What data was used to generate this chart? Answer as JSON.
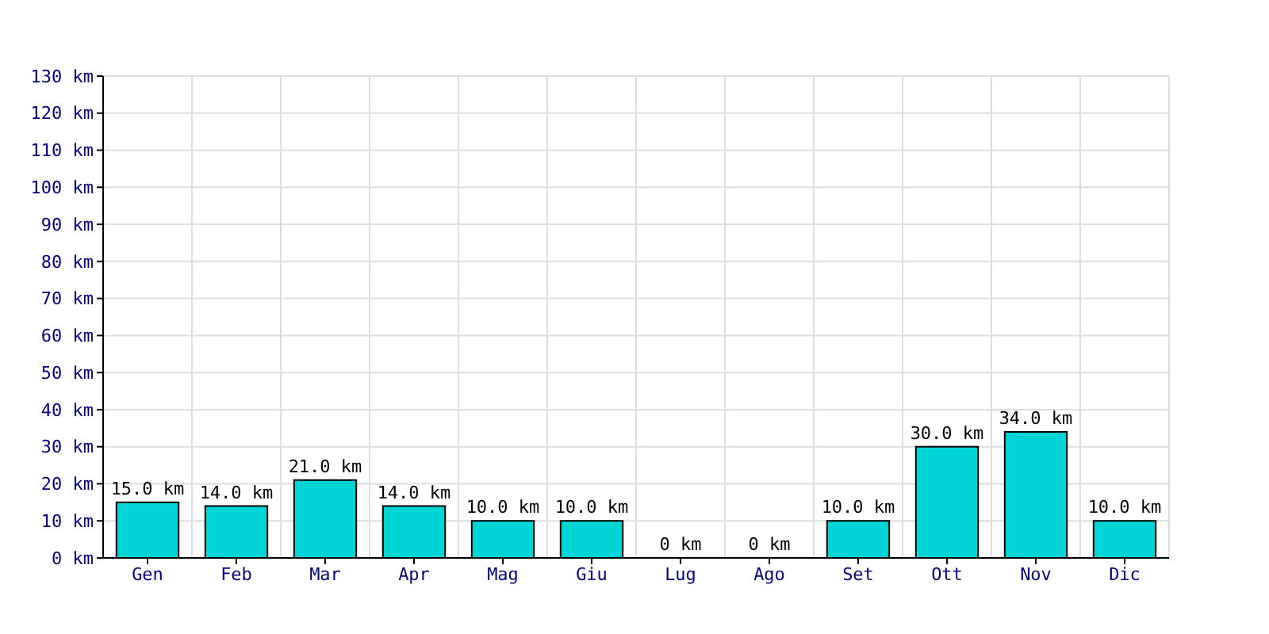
{
  "chart_data": {
    "type": "bar",
    "categories": [
      "Gen",
      "Feb",
      "Mar",
      "Apr",
      "Mag",
      "Giu",
      "Lug",
      "Ago",
      "Set",
      "Ott",
      "Nov",
      "Dic"
    ],
    "values": [
      15,
      14,
      21,
      14,
      10,
      10,
      0,
      0,
      10,
      30,
      34,
      10
    ],
    "value_labels": [
      "15.0 km",
      "14.0 km",
      "21.0 km",
      "14.0 km",
      "10.0 km",
      "10.0 km",
      "0 km",
      "0 km",
      "10.0 km",
      "30.0 km",
      "34.0 km",
      "10.0 km"
    ],
    "color": "#00d4d4",
    "ylim": [
      0,
      130
    ],
    "yticks": [
      {
        "value": 0,
        "label": "0 km"
      },
      {
        "value": 10,
        "label": "10 km"
      },
      {
        "value": 20,
        "label": "20 km"
      },
      {
        "value": 30,
        "label": "30 km"
      },
      {
        "value": 40,
        "label": "40 km"
      },
      {
        "value": 50,
        "label": "50 km"
      },
      {
        "value": 60,
        "label": "60 km"
      },
      {
        "value": 70,
        "label": "70 km"
      },
      {
        "value": 80,
        "label": "80 km"
      },
      {
        "value": 90,
        "label": "90 km"
      },
      {
        "value": 100,
        "label": "100 km"
      },
      {
        "value": 110,
        "label": "110 km"
      },
      {
        "value": 120,
        "label": "120 km"
      },
      {
        "value": 130,
        "label": "130 km"
      }
    ],
    "grid": true
  }
}
